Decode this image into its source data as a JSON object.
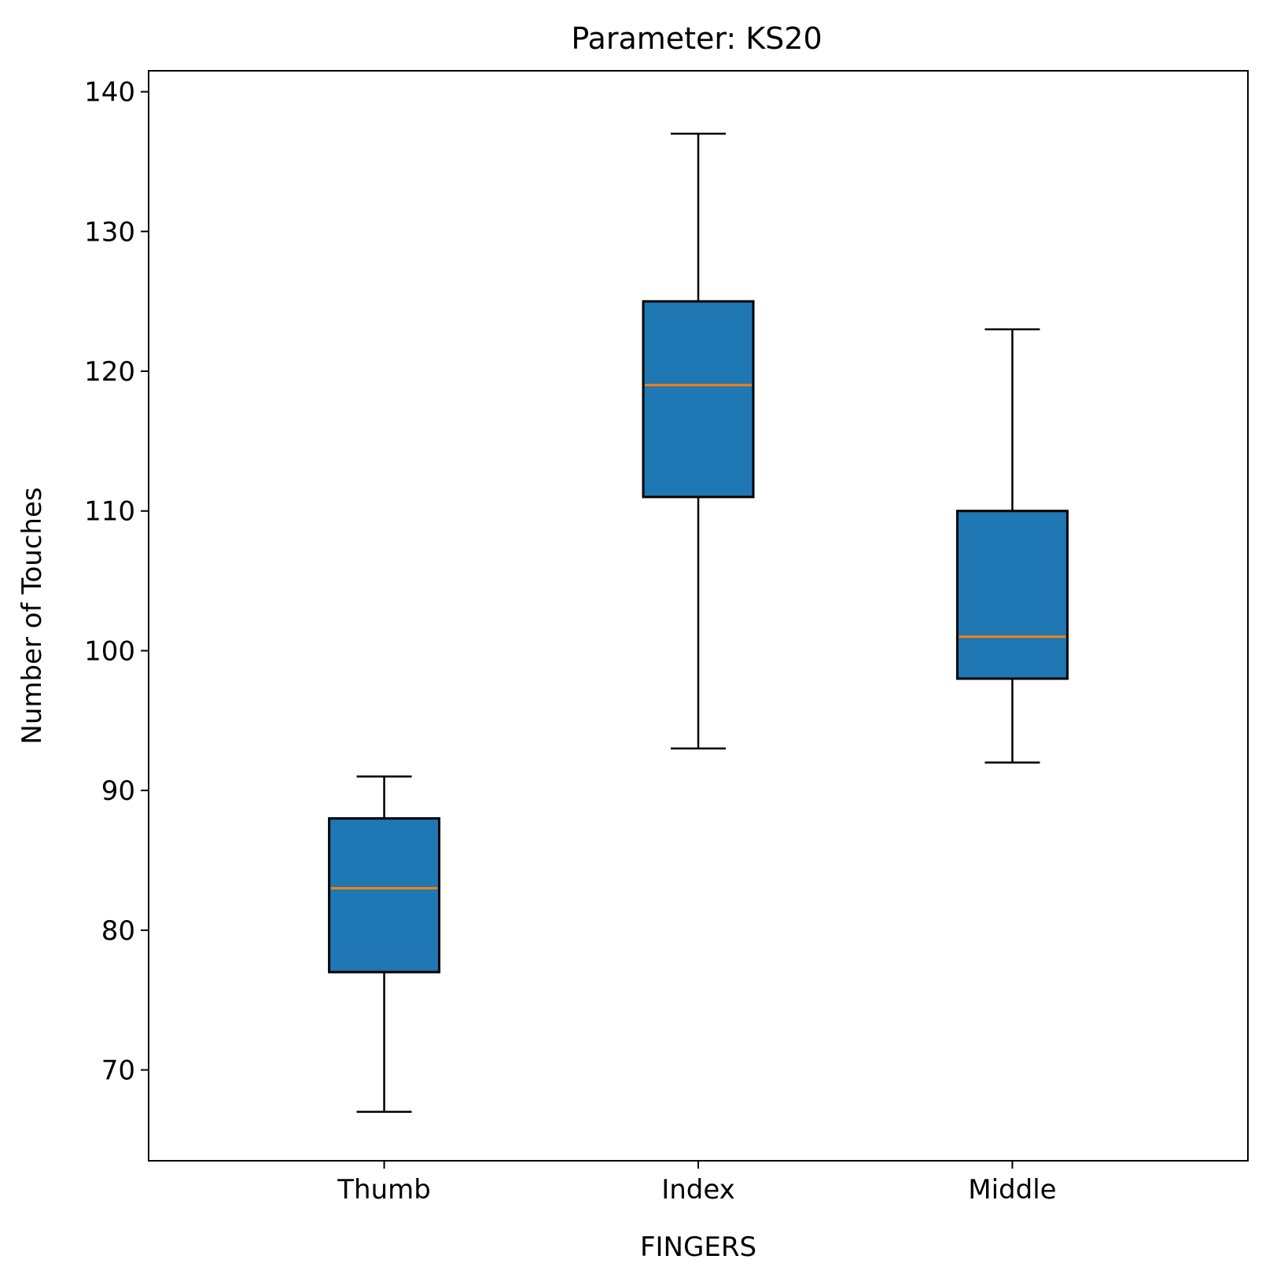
{
  "chart_data": {
    "type": "box",
    "title": "Parameter: KS20",
    "xlabel": "FINGERS",
    "ylabel": "Number of Touches",
    "categories": [
      "Thumb",
      "Index",
      "Middle"
    ],
    "boxes": [
      {
        "category": "Thumb",
        "whisker_low": 67,
        "q1": 77,
        "median": 83,
        "q3": 88,
        "whisker_high": 91
      },
      {
        "category": "Index",
        "whisker_low": 93,
        "q1": 111,
        "median": 119,
        "q3": 125,
        "whisker_high": 137
      },
      {
        "category": "Middle",
        "whisker_low": 92,
        "q1": 98,
        "median": 101,
        "q3": 110,
        "whisker_high": 123
      }
    ],
    "yticks": [
      70,
      80,
      90,
      100,
      110,
      120,
      130,
      140
    ],
    "ylim": [
      63.5,
      141.5
    ],
    "grid": false,
    "colors": {
      "box_fill": "#1f77b4",
      "median": "#ff7f0e",
      "edge": "#000000"
    }
  }
}
